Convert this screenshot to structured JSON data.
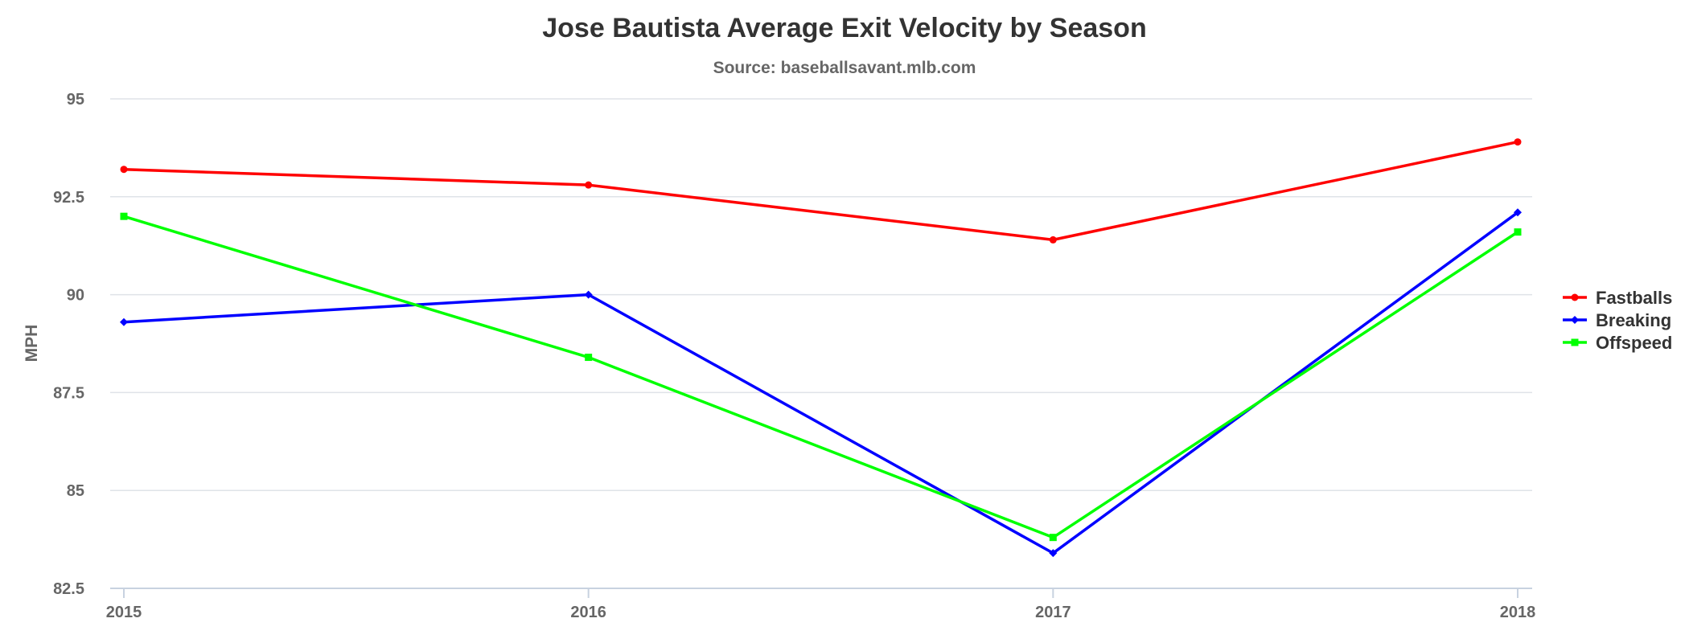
{
  "chart_data": {
    "type": "line",
    "title": "Jose Bautista Average Exit Velocity by Season",
    "subtitle": "Source: baseballsavant.mlb.com",
    "xlabel": "",
    "ylabel": "MPH",
    "x": [
      "2015",
      "2016",
      "2017",
      "2018"
    ],
    "ylim": [
      82.5,
      95
    ],
    "yticks": [
      82.5,
      85,
      87.5,
      90,
      92.5,
      95
    ],
    "ytick_labels": [
      "82.5",
      "85",
      "87.5",
      "90",
      "92.5",
      "95"
    ],
    "grid": true,
    "legend_position": "right",
    "series": [
      {
        "name": "Fastballs",
        "color": "#ff0000",
        "values": [
          93.2,
          92.8,
          91.4,
          93.9
        ]
      },
      {
        "name": "Breaking",
        "color": "#0000ff",
        "values": [
          89.3,
          90.0,
          83.4,
          92.1
        ]
      },
      {
        "name": "Offspeed",
        "color": "#00ff00",
        "values": [
          92.0,
          88.4,
          83.8,
          91.6
        ]
      }
    ]
  }
}
